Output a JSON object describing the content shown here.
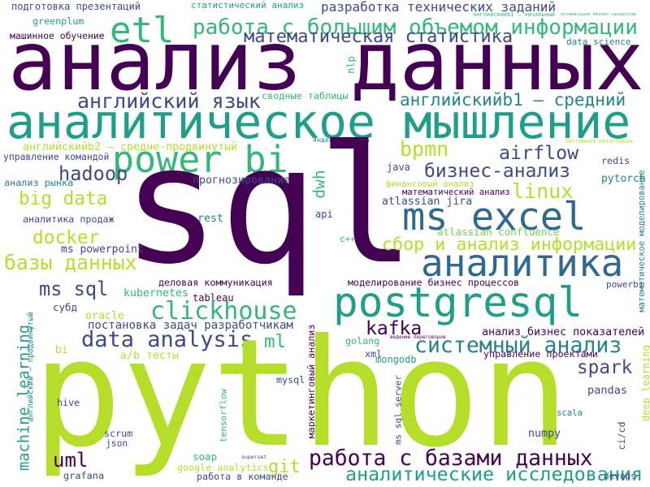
{
  "words": [
    "подготовка презентаций",
    "статистический анализ",
    "разработка технических заданий",
    "английскийb1 — начальный",
    "оптимизация бизнес-процессов",
    "greenplum",
    "etl",
    "работа с большим объемом информации",
    "машинное обучение",
    "математическая статистика",
    "data science",
    "nlp",
    "анализ данных",
    "сводные таблицы",
    "английский язык",
    "английскийb1 — средний",
    "аналитическое мышление",
    "яндекс.метрика",
    "английскийb2 — средне-продвинутый",
    "системная интеграция",
    "управление командой",
    "power bi",
    "bpmn",
    "airflow",
    "redis",
    "математическое моделирование",
    "hadoop",
    "sql",
    "бизнес-анализ",
    "dwh",
    "java",
    "финансовый анализ",
    "прогнозирование",
    "анализ рынка",
    "pytorch",
    "математический анализ",
    "linux",
    "big data",
    "atlassian jira",
    "ms excel",
    "api",
    "аналитика продаж",
    "rest",
    "docker",
    "atlassian confluence",
    "c++",
    "сбор и анализ информации",
    "ms powerpoint",
    "базы данных",
    "аналитика",
    "деловая коммуникация",
    "моделирование бизнес процессов",
    "powerbi",
    "ms sql",
    "kubernetes",
    "tableau",
    "postgresql",
    "clickhouse",
    "субд",
    "oracle",
    "английский — продвинутый",
    "постановка задач разработчикам",
    "маркетинговый анализ",
    "kafka",
    "ведение переговоров",
    "анализ бизнес показателей",
    "data analysis",
    "ml",
    "системный анализ",
    "machine learning",
    "golang",
    "bi",
    "a/b тесты",
    "xml",
    "mongodb",
    "управление проектами",
    "python",
    "spark",
    "deep learning",
    "mysql",
    "pandas",
    "ms sql server",
    "hive",
    "tensorflow",
    "scala",
    "numpy",
    "scrum",
    "ci/cd",
    "работа с базами данных",
    "json",
    "soap",
    "uml",
    "superset",
    "git",
    "аналитические исследования",
    "google analytics",
    "grafana",
    "работа в команде",
    "devops"
  ]
}
